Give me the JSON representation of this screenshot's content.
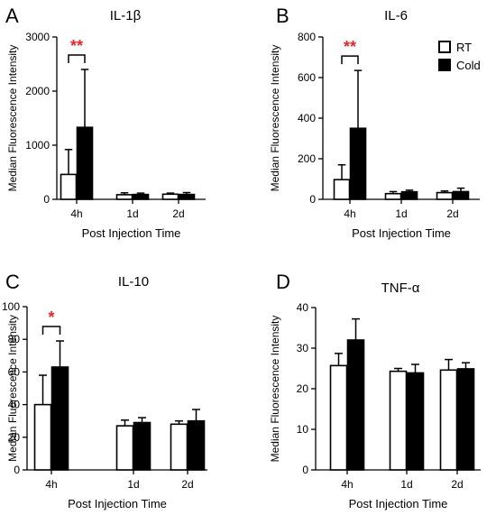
{
  "figure": {
    "colors": {
      "rt_fill": "#ffffff",
      "cold_fill": "#000000",
      "axis": "#000000",
      "significance": "#e8262a"
    },
    "legend": [
      {
        "name": "RT",
        "fill": "#ffffff"
      },
      {
        "name": "Cold",
        "fill": "#000000"
      }
    ]
  },
  "chart_data": [
    {
      "type": "bar",
      "panel_letter": "A",
      "title": "IL-1β",
      "xlabel": "Post Injection Time",
      "ylabel": "Median Fluorescence Intensity",
      "categories": [
        "4h",
        "1d",
        "2d"
      ],
      "ylim": [
        0,
        3000
      ],
      "yticks": [
        0,
        1000,
        2000,
        3000
      ],
      "series": [
        {
          "name": "RT",
          "values": [
            460,
            85,
            95
          ],
          "errors": [
            460,
            35,
            20
          ]
        },
        {
          "name": "Cold",
          "values": [
            1330,
            90,
            90
          ],
          "errors": [
            1070,
            25,
            35
          ]
        }
      ],
      "significance": [
        {
          "category": "4h",
          "label": "**"
        }
      ]
    },
    {
      "type": "bar",
      "panel_letter": "B",
      "title": "IL-6",
      "xlabel": "Post Injection Time",
      "ylabel": "Median Fluorescence Intensity",
      "categories": [
        "4h",
        "1d",
        "2d"
      ],
      "ylim": [
        0,
        800
      ],
      "yticks": [
        0,
        200,
        400,
        600,
        800
      ],
      "series": [
        {
          "name": "RT",
          "values": [
            97,
            28,
            33
          ],
          "errors": [
            73,
            10,
            8
          ]
        },
        {
          "name": "Cold",
          "values": [
            350,
            37,
            38
          ],
          "errors": [
            285,
            8,
            17
          ]
        }
      ],
      "significance": [
        {
          "category": "4h",
          "label": "**"
        }
      ],
      "legend_position": "top-right"
    },
    {
      "type": "bar",
      "panel_letter": "C",
      "title": "IL-10",
      "xlabel": "Post Injection Time",
      "ylabel": "Median Fluorescence Intensity",
      "categories": [
        "4h",
        "1d",
        "2d"
      ],
      "ylim": [
        0,
        100
      ],
      "yticks": [
        0,
        20,
        40,
        60,
        80,
        100
      ],
      "series": [
        {
          "name": "RT",
          "values": [
            40,
            27,
            28
          ],
          "errors": [
            18,
            3.5,
            2
          ]
        },
        {
          "name": "Cold",
          "values": [
            63,
            29,
            30
          ],
          "errors": [
            16,
            3,
            7
          ]
        }
      ],
      "significance": [
        {
          "category": "4h",
          "label": "*"
        }
      ]
    },
    {
      "type": "bar",
      "panel_letter": "D",
      "title": "TNF-α",
      "xlabel": "Post Injection Time",
      "ylabel": "Median Fluorescence Intensity",
      "categories": [
        "4h",
        "1d",
        "2d"
      ],
      "ylim": [
        0,
        40
      ],
      "yticks": [
        0,
        10,
        20,
        30,
        40
      ],
      "series": [
        {
          "name": "RT",
          "values": [
            25.7,
            24.3,
            24.6
          ],
          "errors": [
            3,
            0.7,
            2.6
          ]
        },
        {
          "name": "Cold",
          "values": [
            32,
            23.9,
            24.9
          ],
          "errors": [
            5.2,
            2.1,
            1.5
          ]
        }
      ],
      "significance": []
    }
  ]
}
